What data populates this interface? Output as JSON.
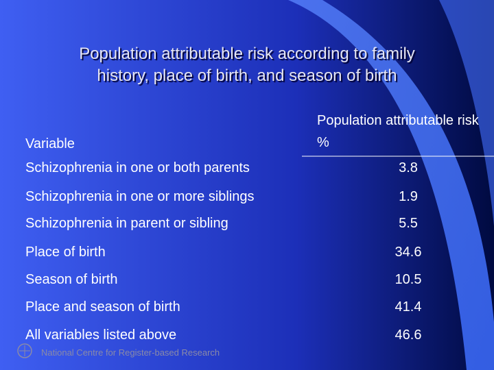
{
  "title": [
    "Population attributable risk according to family",
    "history, place of birth, and season of birth"
  ],
  "table": {
    "header": [
      "Variable",
      "Population attributable risk %"
    ],
    "rows": [
      [
        "Schizophrenia in one or both parents",
        "3.8"
      ],
      [
        "Schizophrenia in one or more siblings",
        "1.9"
      ],
      [
        "Schizophrenia in parent or sibling",
        "5.5"
      ],
      [
        "Place of birth",
        "34.6"
      ],
      [
        "Season of birth",
        "10.5"
      ],
      [
        "Place and season of birth",
        "41.4"
      ],
      [
        "All variables listed above",
        "46.6"
      ]
    ]
  },
  "footer": "National Centre for Register-based Research"
}
